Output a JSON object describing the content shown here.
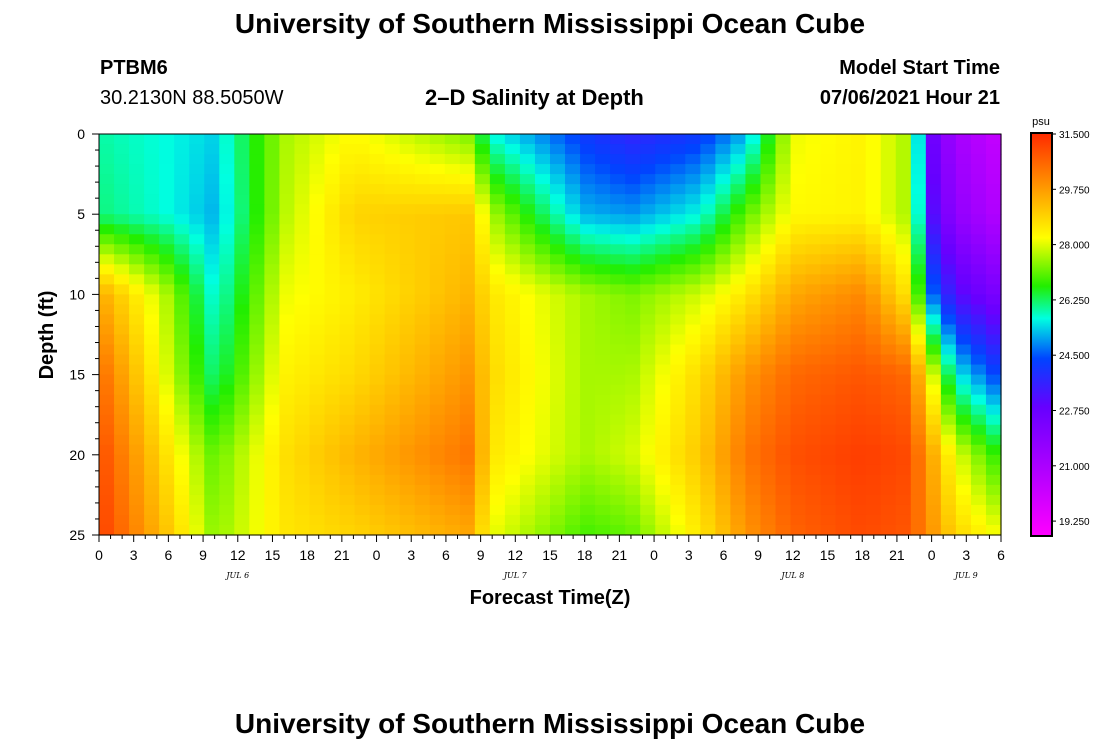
{
  "header": {
    "title": "University of Southern Mississippi Ocean Cube",
    "station": "PTBM6",
    "coords": "30.2130N  88.5050W",
    "plot_title": "2–D Salinity at Depth",
    "model_start_label": "Model Start Time",
    "model_start_value": "07/06/2021 Hour 21"
  },
  "footer": {
    "title": "University of Southern Mississippi Ocean Cube"
  },
  "chart_data": {
    "type": "heatmap",
    "title": "2–D Salinity at Depth",
    "xlabel": "Forecast Time(Z)",
    "ylabel": "Depth (ft)",
    "x_tick_labels": [
      "0",
      "3",
      "6",
      "9",
      "12",
      "15",
      "18",
      "21",
      "0",
      "3",
      "6",
      "9",
      "12",
      "15",
      "18",
      "21",
      "0",
      "3",
      "6",
      "9",
      "12",
      "15",
      "18",
      "21",
      "0",
      "3",
      "6"
    ],
    "date_labels": [
      {
        "label": "JUL 6",
        "hour": 12
      },
      {
        "label": "JUL 7",
        "hour": 36
      },
      {
        "label": "JUL 8",
        "hour": 60
      },
      {
        "label": "JUL 9",
        "hour": 75
      }
    ],
    "xlim_hours": [
      0,
      78
    ],
    "y_tick_labels": [
      "0",
      "5",
      "10",
      "15",
      "20",
      "25"
    ],
    "ylim_ft": [
      0,
      25
    ],
    "colorbar": {
      "unit": "psu",
      "tick_labels": [
        "31.500",
        "29.750",
        "28.000",
        "26.250",
        "24.500",
        "22.750",
        "21.000",
        "19.250"
      ],
      "range": [
        18.5,
        31.5
      ]
    },
    "salinity_psu_at_depth": {
      "depths_ft": [
        0,
        5,
        10,
        15,
        20,
        25
      ],
      "hours": [
        0,
        6,
        10,
        16,
        22,
        32,
        34,
        42,
        46,
        52,
        56,
        60,
        66,
        70,
        72,
        74,
        78
      ],
      "values": [
        [
          25.8,
          25.5,
          25.2,
          27.5,
          28.2,
          27.2,
          25.5,
          24.0,
          23.5,
          24.0,
          25.0,
          28.0,
          28.3,
          27.5,
          22.5,
          21.0,
          20.0
        ],
        [
          26.0,
          25.5,
          25.0,
          27.6,
          28.8,
          29.0,
          27.5,
          25.0,
          24.8,
          25.5,
          27.0,
          28.2,
          28.3,
          27.5,
          23.0,
          21.5,
          20.5
        ],
        [
          29.5,
          27.5,
          25.5,
          28.0,
          28.4,
          29.3,
          28.5,
          27.5,
          27.2,
          27.8,
          28.5,
          29.5,
          30.0,
          28.5,
          24.5,
          23.0,
          22.0
        ],
        [
          30.5,
          27.8,
          26.0,
          28.3,
          28.7,
          29.8,
          28.7,
          27.5,
          27.5,
          28.7,
          29.8,
          30.5,
          30.8,
          30.5,
          28.0,
          25.5,
          24.0
        ],
        [
          31.0,
          28.5,
          27.0,
          28.6,
          29.3,
          30.3,
          28.5,
          27.5,
          27.8,
          29.0,
          30.3,
          30.9,
          31.2,
          31.0,
          29.5,
          28.0,
          26.5
        ],
        [
          31.2,
          29.0,
          27.3,
          28.5,
          28.8,
          29.5,
          28.0,
          26.8,
          27.0,
          28.5,
          29.8,
          30.6,
          31.0,
          30.8,
          29.8,
          28.8,
          28.0
        ]
      ]
    }
  }
}
